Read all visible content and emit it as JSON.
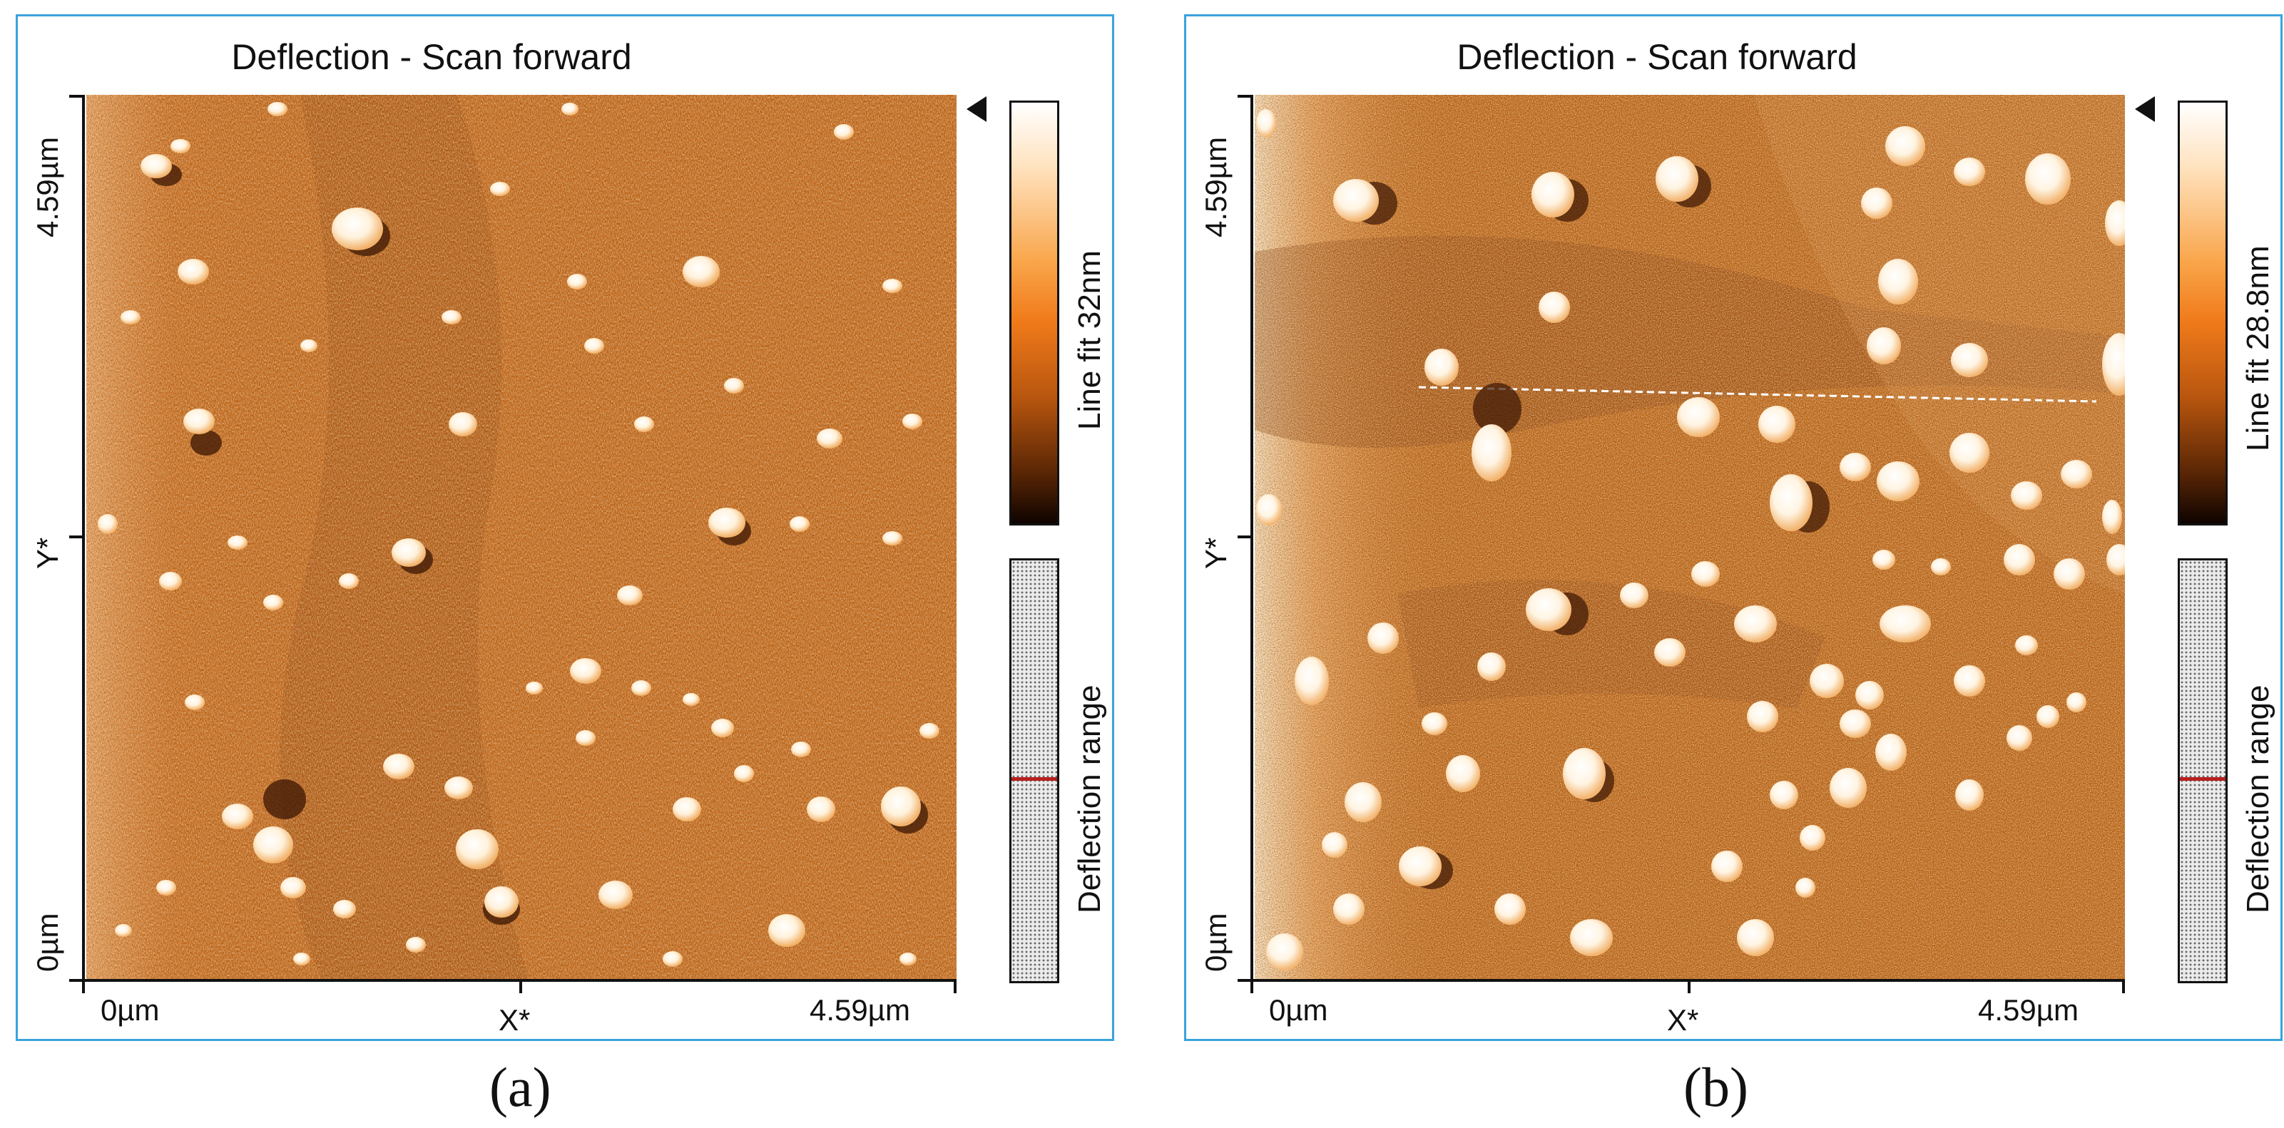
{
  "panels": [
    {
      "id": "a",
      "title": "Deflection - Scan forward",
      "y_axis": {
        "label": "Y*",
        "top": "4.59µm",
        "bottom": "0µm"
      },
      "x_axis": {
        "label": "X*",
        "left": "0µm",
        "right": "4.59µm"
      },
      "colorbar_label": "Line fit 32nm",
      "range_label": "Deflection range",
      "caption": "(a)"
    },
    {
      "id": "b",
      "title": "Deflection - Scan forward",
      "y_axis": {
        "label": "Y*",
        "top": "4.59µm",
        "bottom": "0µm"
      },
      "x_axis": {
        "label": "X*",
        "left": "0µm",
        "right": "4.59µm"
      },
      "colorbar_label": "Line fit 28.8nm",
      "range_label": "Deflection range",
      "caption": "(b)"
    }
  ],
  "colors": {
    "frame": "#3aa3dd",
    "surface": "#c8661a",
    "grain": "#fff1de",
    "shadow": "#3b1603",
    "range_marker": "#b81f1f"
  }
}
